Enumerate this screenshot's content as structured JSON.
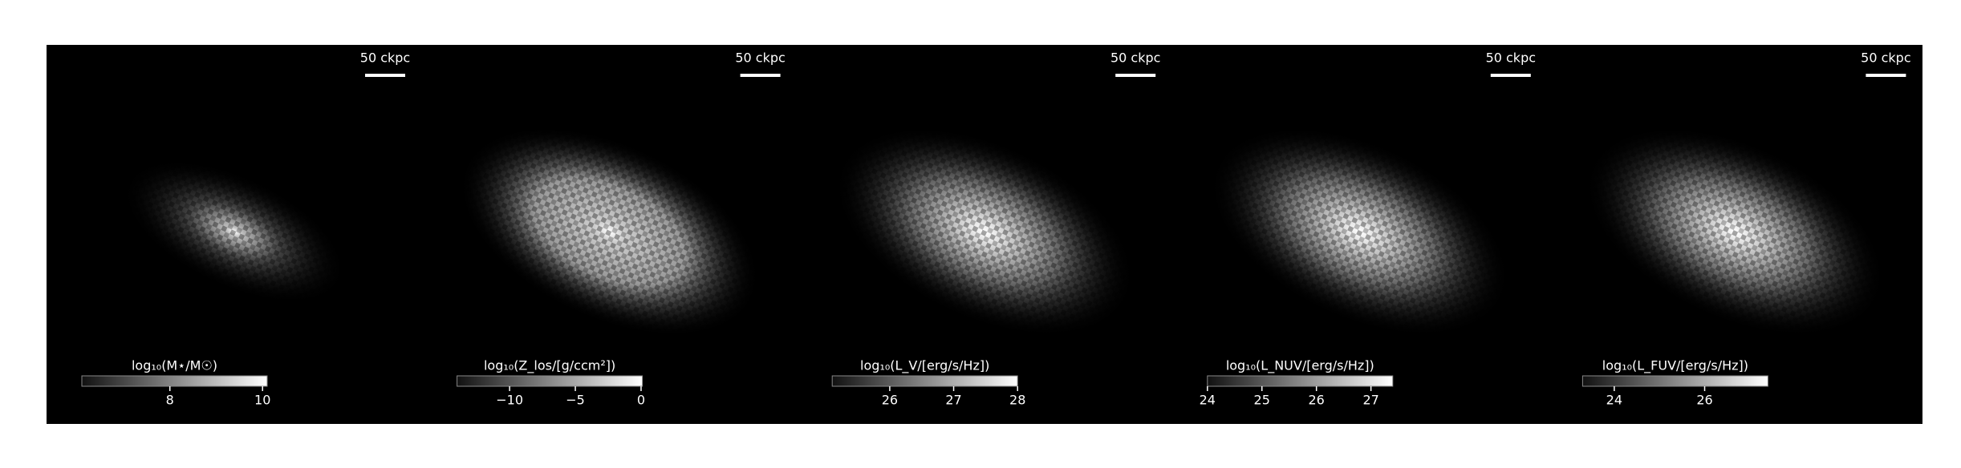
{
  "panels": [
    {
      "scale_bar": "50 ckpc",
      "colorbar": {
        "label": "log₁₀(M⋆/M☉)",
        "lim": [
          6.1,
          10.1
        ],
        "ticks": [
          8,
          10
        ]
      }
    },
    {
      "scale_bar": "50 ckpc",
      "colorbar": {
        "label": "log₁₀(Z_los/[g/ccm²])",
        "lim": [
          -14,
          0.1
        ],
        "ticks": [
          {
            "value": -10,
            "label": "−10"
          },
          {
            "value": -5,
            "label": "−5"
          },
          0
        ]
      }
    },
    {
      "scale_bar": "50 ckpc",
      "colorbar": {
        "label": "log₁₀(L_V/[erg/s/Hz])",
        "lim": [
          25.1,
          28
        ],
        "ticks": [
          26,
          27,
          28
        ]
      }
    },
    {
      "scale_bar": "50 ckpc",
      "colorbar": {
        "label": "log₁₀(L_NUV/[erg/s/Hz])",
        "lim": [
          24,
          27.4
        ],
        "ticks": [
          24,
          25,
          26,
          27
        ]
      }
    },
    {
      "scale_bar": "50 ckpc",
      "colorbar": {
        "label": "log₁₀(L_FUV/[erg/s/Hz])",
        "lim": [
          23.3,
          27.4
        ],
        "ticks": [
          24,
          26
        ]
      }
    }
  ]
}
